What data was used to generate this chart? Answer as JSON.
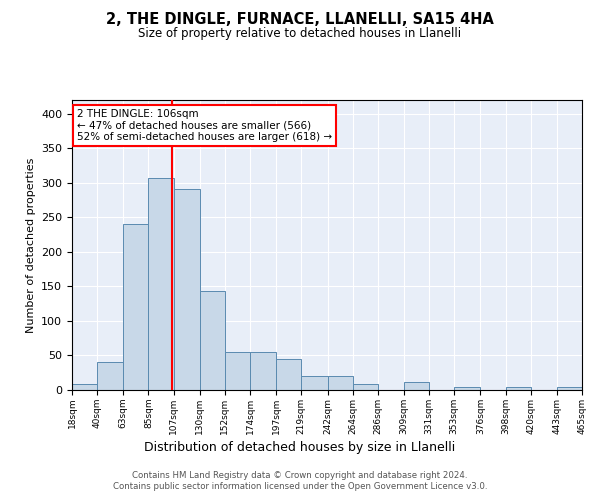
{
  "title": "2, THE DINGLE, FURNACE, LLANELLI, SA15 4HA",
  "subtitle": "Size of property relative to detached houses in Llanelli",
  "xlabel": "Distribution of detached houses by size in Llanelli",
  "ylabel": "Number of detached properties",
  "bar_color": "#c8d8e8",
  "bar_edge_color": "#5a8ab0",
  "background_color": "#e8eef8",
  "grid_color": "white",
  "red_line_x": 106,
  "annotation_line1": "2 THE DINGLE: 106sqm",
  "annotation_line2": "← 47% of detached houses are smaller (566)",
  "annotation_line3": "52% of semi-detached houses are larger (618) →",
  "footer_line1": "Contains HM Land Registry data © Crown copyright and database right 2024.",
  "footer_line2": "Contains public sector information licensed under the Open Government Licence v3.0.",
  "bin_edges": [
    18,
    40,
    63,
    85,
    107,
    130,
    152,
    174,
    197,
    219,
    242,
    264,
    286,
    309,
    331,
    353,
    376,
    398,
    420,
    443,
    465
  ],
  "bar_heights": [
    8,
    40,
    241,
    307,
    291,
    144,
    55,
    55,
    45,
    20,
    20,
    8,
    0,
    11,
    0,
    5,
    0,
    4,
    0,
    4
  ],
  "tick_labels": [
    "18sqm",
    "40sqm",
    "63sqm",
    "85sqm",
    "107sqm",
    "130sqm",
    "152sqm",
    "174sqm",
    "197sqm",
    "219sqm",
    "242sqm",
    "264sqm",
    "286sqm",
    "309sqm",
    "331sqm",
    "353sqm",
    "376sqm",
    "398sqm",
    "420sqm",
    "443sqm",
    "465sqm"
  ],
  "ylim": [
    0,
    420
  ],
  "yticks": [
    0,
    50,
    100,
    150,
    200,
    250,
    300,
    350,
    400
  ]
}
